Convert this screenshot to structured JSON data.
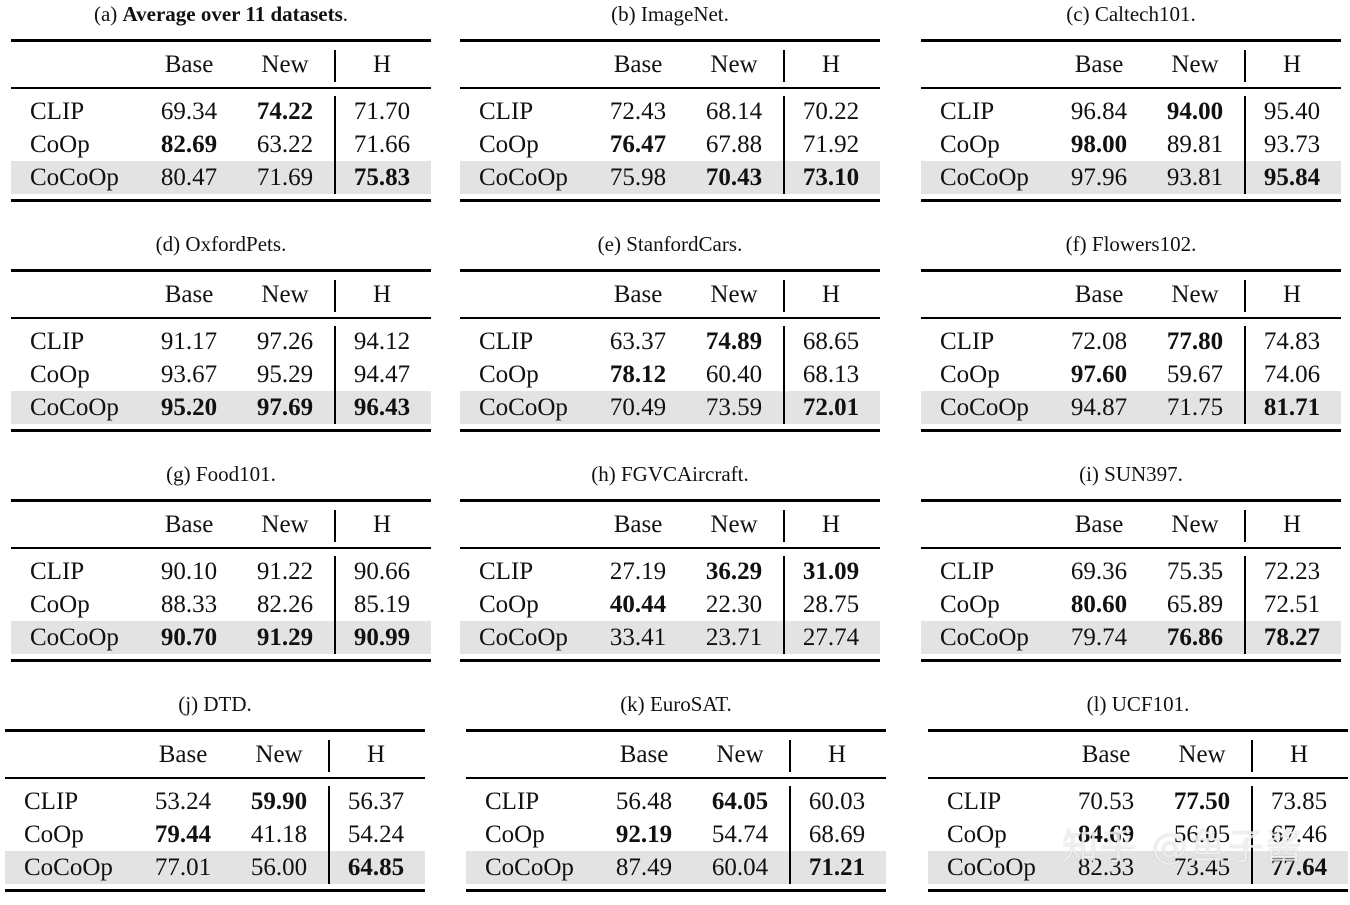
{
  "columns": [
    "Base",
    "New",
    "H"
  ],
  "tables": [
    {
      "label": "(a)",
      "title": "Average over 11 datasets",
      "title_bold": true,
      "rows": [
        {
          "method": "CLIP",
          "base": "69.34",
          "new": "74.22",
          "h": "71.70",
          "bold": [
            false,
            true,
            false
          ]
        },
        {
          "method": "CoOp",
          "base": "82.69",
          "new": "63.22",
          "h": "71.66",
          "bold": [
            true,
            false,
            false
          ]
        },
        {
          "method": "CoCoOp",
          "base": "80.47",
          "new": "71.69",
          "h": "75.83",
          "bold": [
            false,
            false,
            true
          ]
        }
      ]
    },
    {
      "label": "(b)",
      "title": "ImageNet",
      "title_bold": false,
      "rows": [
        {
          "method": "CLIP",
          "base": "72.43",
          "new": "68.14",
          "h": "70.22",
          "bold": [
            false,
            false,
            false
          ]
        },
        {
          "method": "CoOp",
          "base": "76.47",
          "new": "67.88",
          "h": "71.92",
          "bold": [
            true,
            false,
            false
          ]
        },
        {
          "method": "CoCoOp",
          "base": "75.98",
          "new": "70.43",
          "h": "73.10",
          "bold": [
            false,
            true,
            true
          ]
        }
      ]
    },
    {
      "label": "(c)",
      "title": "Caltech101",
      "title_bold": false,
      "rows": [
        {
          "method": "CLIP",
          "base": "96.84",
          "new": "94.00",
          "h": "95.40",
          "bold": [
            false,
            true,
            false
          ]
        },
        {
          "method": "CoOp",
          "base": "98.00",
          "new": "89.81",
          "h": "93.73",
          "bold": [
            true,
            false,
            false
          ]
        },
        {
          "method": "CoCoOp",
          "base": "97.96",
          "new": "93.81",
          "h": "95.84",
          "bold": [
            false,
            false,
            true
          ]
        }
      ]
    },
    {
      "label": "(d)",
      "title": "OxfordPets",
      "title_bold": false,
      "rows": [
        {
          "method": "CLIP",
          "base": "91.17",
          "new": "97.26",
          "h": "94.12",
          "bold": [
            false,
            false,
            false
          ]
        },
        {
          "method": "CoOp",
          "base": "93.67",
          "new": "95.29",
          "h": "94.47",
          "bold": [
            false,
            false,
            false
          ]
        },
        {
          "method": "CoCoOp",
          "base": "95.20",
          "new": "97.69",
          "h": "96.43",
          "bold": [
            true,
            true,
            true
          ]
        }
      ]
    },
    {
      "label": "(e)",
      "title": "StanfordCars",
      "title_bold": false,
      "rows": [
        {
          "method": "CLIP",
          "base": "63.37",
          "new": "74.89",
          "h": "68.65",
          "bold": [
            false,
            true,
            false
          ]
        },
        {
          "method": "CoOp",
          "base": "78.12",
          "new": "60.40",
          "h": "68.13",
          "bold": [
            true,
            false,
            false
          ]
        },
        {
          "method": "CoCoOp",
          "base": "70.49",
          "new": "73.59",
          "h": "72.01",
          "bold": [
            false,
            false,
            true
          ]
        }
      ]
    },
    {
      "label": "(f)",
      "title": "Flowers102",
      "title_bold": false,
      "rows": [
        {
          "method": "CLIP",
          "base": "72.08",
          "new": "77.80",
          "h": "74.83",
          "bold": [
            false,
            true,
            false
          ]
        },
        {
          "method": "CoOp",
          "base": "97.60",
          "new": "59.67",
          "h": "74.06",
          "bold": [
            true,
            false,
            false
          ]
        },
        {
          "method": "CoCoOp",
          "base": "94.87",
          "new": "71.75",
          "h": "81.71",
          "bold": [
            false,
            false,
            true
          ]
        }
      ]
    },
    {
      "label": "(g)",
      "title": "Food101",
      "title_bold": false,
      "rows": [
        {
          "method": "CLIP",
          "base": "90.10",
          "new": "91.22",
          "h": "90.66",
          "bold": [
            false,
            false,
            false
          ]
        },
        {
          "method": "CoOp",
          "base": "88.33",
          "new": "82.26",
          "h": "85.19",
          "bold": [
            false,
            false,
            false
          ]
        },
        {
          "method": "CoCoOp",
          "base": "90.70",
          "new": "91.29",
          "h": "90.99",
          "bold": [
            true,
            true,
            true
          ]
        }
      ]
    },
    {
      "label": "(h)",
      "title": "FGVCAircraft",
      "title_bold": false,
      "rows": [
        {
          "method": "CLIP",
          "base": "27.19",
          "new": "36.29",
          "h": "31.09",
          "bold": [
            false,
            true,
            true
          ]
        },
        {
          "method": "CoOp",
          "base": "40.44",
          "new": "22.30",
          "h": "28.75",
          "bold": [
            true,
            false,
            false
          ]
        },
        {
          "method": "CoCoOp",
          "base": "33.41",
          "new": "23.71",
          "h": "27.74",
          "bold": [
            false,
            false,
            false
          ]
        }
      ]
    },
    {
      "label": "(i)",
      "title": "SUN397",
      "title_bold": false,
      "rows": [
        {
          "method": "CLIP",
          "base": "69.36",
          "new": "75.35",
          "h": "72.23",
          "bold": [
            false,
            false,
            false
          ]
        },
        {
          "method": "CoOp",
          "base": "80.60",
          "new": "65.89",
          "h": "72.51",
          "bold": [
            true,
            false,
            false
          ]
        },
        {
          "method": "CoCoOp",
          "base": "79.74",
          "new": "76.86",
          "h": "78.27",
          "bold": [
            false,
            true,
            true
          ]
        }
      ]
    },
    {
      "label": "(j)",
      "title": "DTD",
      "title_bold": false,
      "rows": [
        {
          "method": "CLIP",
          "base": "53.24",
          "new": "59.90",
          "h": "56.37",
          "bold": [
            false,
            true,
            false
          ]
        },
        {
          "method": "CoOp",
          "base": "79.44",
          "new": "41.18",
          "h": "54.24",
          "bold": [
            true,
            false,
            false
          ]
        },
        {
          "method": "CoCoOp",
          "base": "77.01",
          "new": "56.00",
          "h": "64.85",
          "bold": [
            false,
            false,
            true
          ]
        }
      ]
    },
    {
      "label": "(k)",
      "title": "EuroSAT",
      "title_bold": false,
      "rows": [
        {
          "method": "CLIP",
          "base": "56.48",
          "new": "64.05",
          "h": "60.03",
          "bold": [
            false,
            true,
            false
          ]
        },
        {
          "method": "CoOp",
          "base": "92.19",
          "new": "54.74",
          "h": "68.69",
          "bold": [
            true,
            false,
            false
          ]
        },
        {
          "method": "CoCoOp",
          "base": "87.49",
          "new": "60.04",
          "h": "71.21",
          "bold": [
            false,
            false,
            true
          ]
        }
      ]
    },
    {
      "label": "(l)",
      "title": "UCF101",
      "title_bold": false,
      "rows": [
        {
          "method": "CLIP",
          "base": "70.53",
          "new": "77.50",
          "h": "73.85",
          "bold": [
            false,
            true,
            false
          ]
        },
        {
          "method": "CoOp",
          "base": "84.69",
          "new": "56.05",
          "h": "67.46",
          "bold": [
            true,
            false,
            false
          ]
        },
        {
          "method": "CoCoOp",
          "base": "82.33",
          "new": "73.45",
          "h": "77.64",
          "bold": [
            false,
            false,
            true
          ]
        }
      ]
    }
  ],
  "highlight_color": "#e3e3e3",
  "watermark": "知乎 @鱼子酱"
}
